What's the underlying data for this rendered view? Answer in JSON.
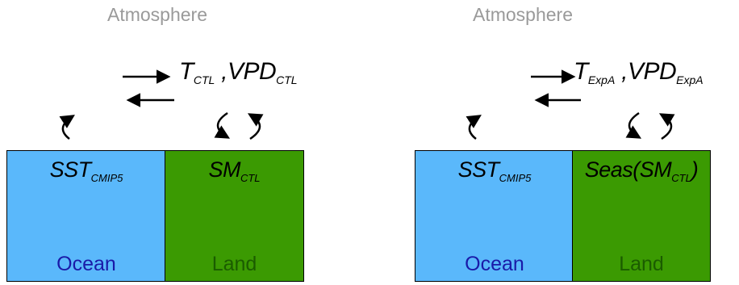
{
  "panels": [
    {
      "atmosphere_label": "Atmosphere",
      "atm_vars": {
        "t": "T",
        "t_sub": "CTL",
        "sep": " ,",
        "vpd": "VPD",
        "vpd_sub": "CTL"
      },
      "ocean": {
        "var": "SST",
        "var_sub": "CMIP5",
        "label": "Ocean"
      },
      "land": {
        "prefix": "",
        "var": "SM",
        "var_sub": "CTL",
        "suffix": "",
        "label": "Land"
      }
    },
    {
      "atmosphere_label": "Atmosphere",
      "atm_vars": {
        "t": "T",
        "t_sub": "ExpA",
        "sep": " ,",
        "vpd": "VPD",
        "vpd_sub": "ExpA"
      },
      "ocean": {
        "var": "SST",
        "var_sub": "CMIP5",
        "label": "Ocean"
      },
      "land": {
        "prefix": "Seas(",
        "var": "SM",
        "var_sub": "CTL",
        "suffix": ")",
        "label": "Land"
      }
    }
  ],
  "colors": {
    "ocean": "#5ab8fb",
    "land": "#3b9a02",
    "atmosphere_text": "#9a9a9a"
  },
  "icons": [
    "right-arrow-icon",
    "left-arrow-icon",
    "circular-arrow-icon"
  ]
}
